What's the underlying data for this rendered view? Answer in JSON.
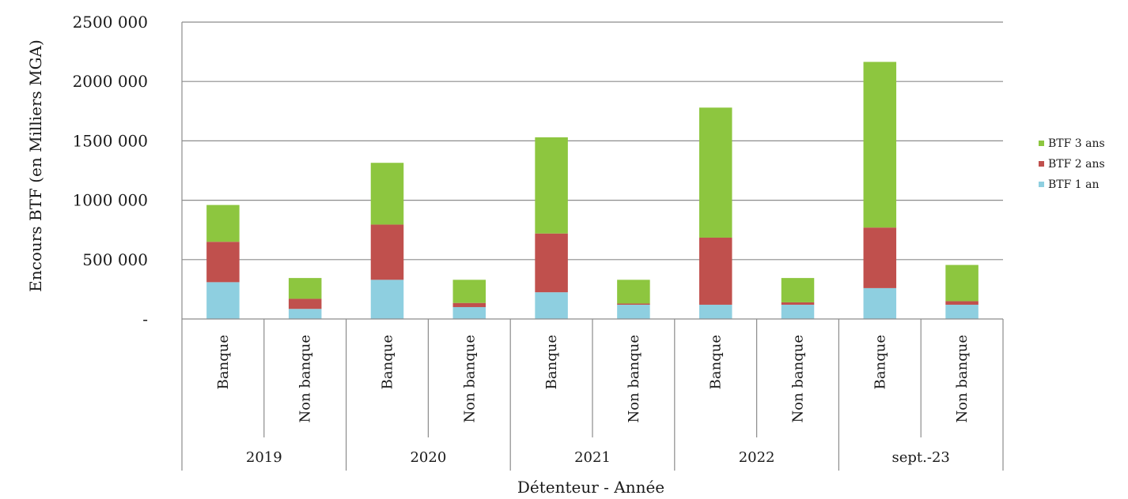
{
  "chart_data": {
    "type": "bar",
    "stacked": true,
    "xlabel": "Détenteur - Année",
    "ylabel": "Encours BTF (en Milliers MGA)",
    "ylim": [
      0,
      2500000
    ],
    "yticks": [
      {
        "value": 0,
        "label": "-"
      },
      {
        "value": 500000,
        "label": "500 000"
      },
      {
        "value": 1000000,
        "label": "1000 000"
      },
      {
        "value": 1500000,
        "label": "1500 000"
      },
      {
        "value": 2000000,
        "label": "2000 000"
      },
      {
        "value": 2500000,
        "label": "2500 000"
      }
    ],
    "grid": true,
    "legend_position": "right",
    "groups": [
      "2019",
      "2020",
      "2021",
      "2022",
      "sept.-23"
    ],
    "categories": [
      "Banque",
      "Non banque",
      "Banque",
      "Non banque",
      "Banque",
      "Non banque",
      "Banque",
      "Non banque",
      "Banque",
      "Non banque"
    ],
    "series": [
      {
        "name": "BTF 1 an",
        "color": "#8ecfe0",
        "values": [
          310000,
          85000,
          330000,
          100000,
          225000,
          120000,
          120000,
          120000,
          260000,
          120000
        ]
      },
      {
        "name": "BTF 2 ans",
        "color": "#c0504d",
        "values": [
          340000,
          85000,
          465000,
          35000,
          495000,
          10000,
          565000,
          20000,
          510000,
          30000
        ]
      },
      {
        "name": "BTF 3 ans",
        "color": "#8dc63f",
        "values": [
          310000,
          175000,
          520000,
          195000,
          810000,
          200000,
          1095000,
          205000,
          1395000,
          305000
        ]
      }
    ]
  }
}
